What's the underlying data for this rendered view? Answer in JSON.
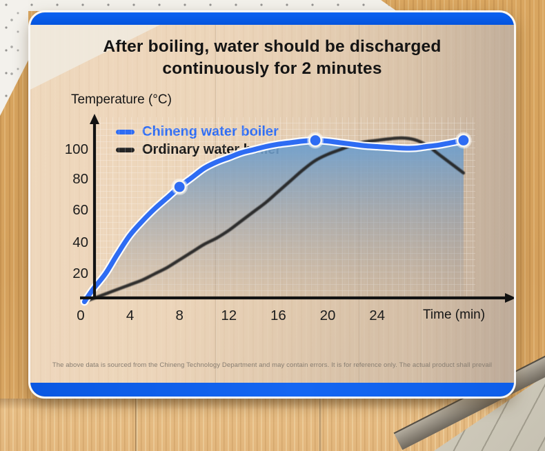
{
  "card": {
    "title": "After boiling, water should be discharged continuously for 2 minutes",
    "footnote": "The above data is sourced from the Chineng Technology Department and may contain errors. It is for reference only. The actual product shall prevail",
    "accent_blue": "#0658e8"
  },
  "chart_data": {
    "type": "line",
    "title": "After boiling, water should be discharged continuously for 2 minutes",
    "xlabel": "Time (min)",
    "ylabel": "Temperature (°C)",
    "x_ticks": [
      "0",
      "4",
      "8",
      "12",
      "16",
      "20",
      "24"
    ],
    "x_tick_values": [
      0,
      4,
      8,
      12,
      16,
      20,
      24
    ],
    "y_ticks": [
      "100",
      "80",
      "60",
      "40",
      "20"
    ],
    "y_tick_values": [
      100,
      80,
      60,
      40,
      20
    ],
    "xlim": [
      0,
      31
    ],
    "ylim": [
      0,
      118
    ],
    "grid": true,
    "legend_position": "top-left",
    "series": [
      {
        "name": "Chineng water boiler",
        "color": "#2e6cf3",
        "area_fill": true,
        "points": [
          [
            0.3,
            2
          ],
          [
            1,
            10
          ],
          [
            2,
            20
          ],
          [
            3,
            33
          ],
          [
            4,
            45
          ],
          [
            5,
            54
          ],
          [
            6,
            62
          ],
          [
            7,
            69
          ],
          [
            8,
            76
          ],
          [
            9,
            82
          ],
          [
            10,
            88
          ],
          [
            11,
            92
          ],
          [
            12,
            95
          ],
          [
            13,
            98
          ],
          [
            14,
            100
          ],
          [
            15,
            102
          ],
          [
            16,
            103.5
          ],
          [
            17,
            104.5
          ],
          [
            18,
            105.5
          ],
          [
            19,
            106
          ],
          [
            20,
            105.5
          ],
          [
            21,
            104.5
          ],
          [
            22,
            103.5
          ],
          [
            23,
            102.5
          ],
          [
            24,
            102
          ],
          [
            25,
            101.5
          ],
          [
            26,
            101
          ],
          [
            27,
            101
          ],
          [
            28,
            102
          ],
          [
            29,
            103
          ],
          [
            30,
            104.5
          ],
          [
            31,
            106
          ]
        ],
        "markers": [
          [
            8,
            76
          ],
          [
            19,
            106
          ],
          [
            31,
            106
          ]
        ]
      },
      {
        "name": "Ordinary water boiler",
        "color": "#242424",
        "area_fill": false,
        "points": [
          [
            0.3,
            2
          ],
          [
            1,
            4
          ],
          [
            2,
            7
          ],
          [
            3,
            10
          ],
          [
            4,
            13
          ],
          [
            5,
            16
          ],
          [
            6,
            20
          ],
          [
            7,
            24
          ],
          [
            8,
            29
          ],
          [
            9,
            34
          ],
          [
            10,
            39
          ],
          [
            11,
            43
          ],
          [
            12,
            48
          ],
          [
            13,
            54
          ],
          [
            14,
            60
          ],
          [
            15,
            66
          ],
          [
            16,
            73
          ],
          [
            17,
            80
          ],
          [
            18,
            87
          ],
          [
            19,
            93
          ],
          [
            20,
            97
          ],
          [
            21,
            100
          ],
          [
            22,
            103
          ],
          [
            23,
            105
          ],
          [
            24,
            106
          ],
          [
            25,
            107
          ],
          [
            26,
            107.5
          ],
          [
            27,
            106.5
          ],
          [
            28,
            103
          ],
          [
            29,
            97
          ],
          [
            30,
            91
          ],
          [
            31,
            85
          ]
        ],
        "markers": []
      }
    ]
  }
}
